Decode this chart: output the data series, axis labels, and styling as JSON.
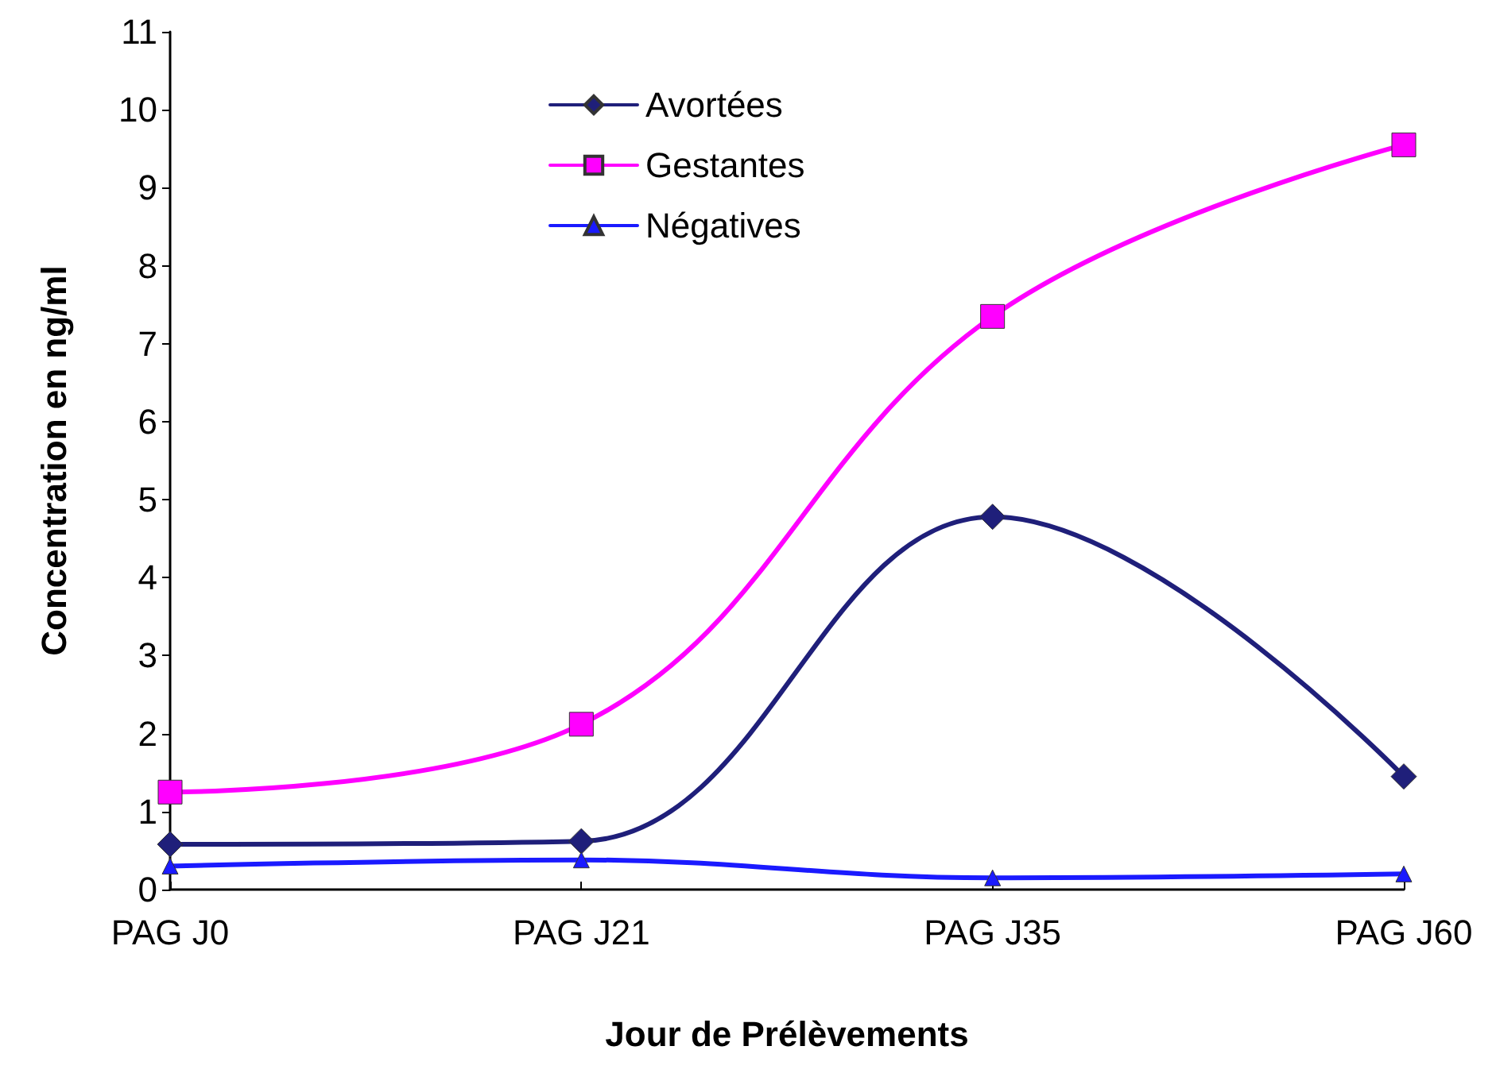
{
  "chart_data": {
    "type": "line",
    "xlabel": "Jour de Prélèvements",
    "ylabel": "Concentration en ng/ml",
    "categories": [
      "PAG J0",
      "PAG J21",
      "PAG J35",
      "PAG J60"
    ],
    "series": [
      {
        "name": "Avortées",
        "color": "#1f1f7a",
        "marker": "diamond",
        "values": [
          0.58,
          0.62,
          4.78,
          1.45
        ]
      },
      {
        "name": "Gestantes",
        "color": "#ff00ff",
        "marker": "square",
        "values": [
          1.25,
          2.12,
          7.35,
          9.55
        ]
      },
      {
        "name": "Négatives",
        "color": "#1a1aff",
        "marker": "triangle",
        "values": [
          0.3,
          0.38,
          0.15,
          0.2
        ]
      }
    ],
    "ylim": [
      0,
      11
    ],
    "yticks": [
      0,
      1,
      2,
      3,
      4,
      5,
      6,
      7,
      8,
      9,
      10,
      11
    ],
    "grid": false,
    "legend": "top left",
    "line_style": "solid"
  }
}
